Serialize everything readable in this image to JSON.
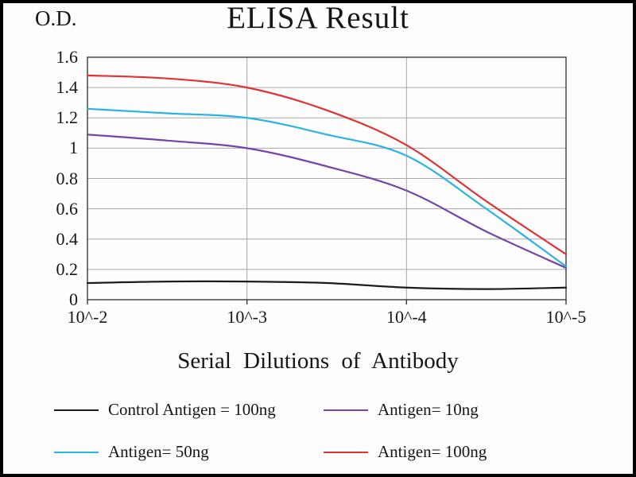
{
  "figure": {
    "background": "#fdfdfd",
    "border_color": "#000000"
  },
  "chart_data": {
    "type": "line",
    "title": "ELISA Result",
    "ylabel": "O.D.",
    "xlabel": "Serial Dilutions of Antibody",
    "x_tick_labels": [
      "10^-2",
      "10^-3",
      "10^-4",
      "10^-5"
    ],
    "y_tick_labels": [
      "0",
      "0.2",
      "0.4",
      "0.6",
      "0.8",
      "1",
      "1.2",
      "1.4",
      "1.6"
    ],
    "ylim": [
      0,
      1.6
    ],
    "grid": true,
    "grid_color": "#a8a8a8",
    "axis_color": "#3a3a3a",
    "legend_position": "bottom",
    "x_scale_note": "serial dilution, 0 = 10^-2 through 3 = 10^-5",
    "sample_x": [
      0,
      0.5,
      1,
      1.5,
      2,
      2.5,
      3
    ],
    "series": [
      {
        "key": "control-antigen-100ng",
        "name": "Control Antigen = 100ng",
        "color": "#1c1c1c",
        "values": [
          0.11,
          0.12,
          0.12,
          0.11,
          0.08,
          0.07,
          0.08
        ],
        "values_at_ticks": [
          0.11,
          0.12,
          0.08,
          0.08
        ]
      },
      {
        "key": "antigen-10ng",
        "name": "Antigen= 10ng",
        "color": "#7345a8",
        "values": [
          1.09,
          1.05,
          1.0,
          0.88,
          0.72,
          0.45,
          0.21
        ],
        "values_at_ticks": [
          1.09,
          1.0,
          0.72,
          0.21
        ]
      },
      {
        "key": "antigen-50ng",
        "name": "Antigen= 50ng",
        "color": "#2bb3e6",
        "values": [
          1.26,
          1.23,
          1.2,
          1.09,
          0.95,
          0.6,
          0.22
        ],
        "values_at_ticks": [
          1.26,
          1.2,
          0.95,
          0.22
        ]
      },
      {
        "key": "antigen-100ng",
        "name": "Antigen= 100ng",
        "color": "#e03231",
        "values": [
          1.48,
          1.46,
          1.4,
          1.25,
          1.02,
          0.65,
          0.3
        ],
        "values_at_ticks": [
          1.48,
          1.4,
          1.02,
          0.3
        ]
      }
    ]
  }
}
